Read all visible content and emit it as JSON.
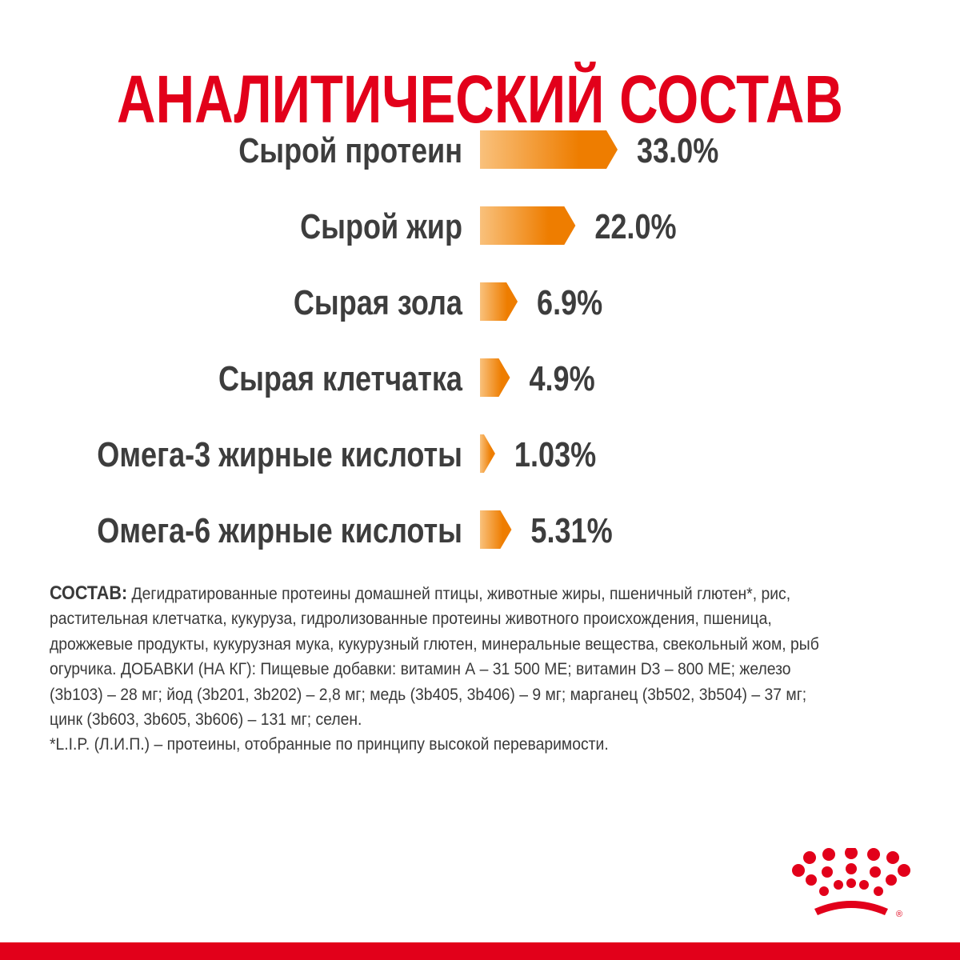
{
  "title": "АНАЛИТИЧЕСКИЙ СОСТАВ",
  "colors": {
    "title": "#e2001a",
    "label": "#3d3d3d",
    "bar_light": "#f9c17c",
    "bar_dark": "#ee7d00",
    "brand_red": "#e2001a"
  },
  "chart_data": {
    "type": "bar",
    "orientation": "horizontal",
    "title": "АНАЛИТИЧЕСКИЙ СОСТАВ",
    "categories": [
      "Сырой протеин",
      "Сырой жир",
      "Сырая зола",
      "Сырая клетчатка",
      "Омега-3 жирные кислоты",
      "Омега-6 жирные кислоты"
    ],
    "values": [
      33.0,
      22.0,
      6.9,
      4.9,
      1.03,
      5.31
    ],
    "value_labels": [
      "33.0%",
      "22.0%",
      "6.9%",
      "4.9%",
      "1.03%",
      "5.31%"
    ],
    "unit": "%",
    "grid": false,
    "legend": "none"
  },
  "composition": {
    "lead": "СОСТАВ:",
    "text": "Дегидратированные протеины домашней птицы, животные жиры, пшеничный глютен*, рис, растительная клетчатка, кукуруза, гидролизованные протеины животного происхождения, пшеница, дрожжевые продукты, кукурузная мука, кукурузный глютен, минеральные вещества, свекольный жом, рыб огурчика. ДОБАВКИ (НА КГ): Пищевые добавки: витамин А – 31 500 МЕ; витамин D3 – 800 МЕ; железо (3b103) – 28 мг; йод (3b201, 3b202) – 2,8 мг; медь (3b405, 3b406) – 9 мг; марганец (3b502, 3b504) – 37 мг; цинк (3b603, 3b605, 3b606) – 131 мг; селен.",
    "footnote": "*L.I.P. (Л.И.П.) – протеины, отобранные по принципу высокой переваримости."
  },
  "logo": {
    "icon": "royal-canin-crown-icon",
    "mark": "®"
  }
}
